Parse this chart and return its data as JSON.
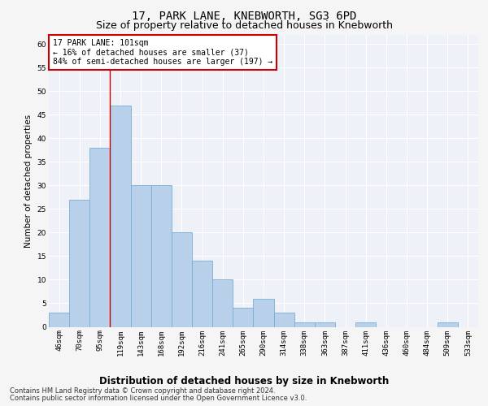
{
  "title": "17, PARK LANE, KNEBWORTH, SG3 6PD",
  "subtitle": "Size of property relative to detached houses in Knebworth",
  "xlabel": "Distribution of detached houses by size in Knebworth",
  "ylabel": "Number of detached properties",
  "bar_labels": [
    "46sqm",
    "70sqm",
    "95sqm",
    "119sqm",
    "143sqm",
    "168sqm",
    "192sqm",
    "216sqm",
    "241sqm",
    "265sqm",
    "290sqm",
    "314sqm",
    "338sqm",
    "363sqm",
    "387sqm",
    "411sqm",
    "436sqm",
    "460sqm",
    "484sqm",
    "509sqm",
    "533sqm"
  ],
  "bar_values": [
    3,
    27,
    38,
    47,
    30,
    30,
    20,
    14,
    10,
    4,
    6,
    3,
    1,
    1,
    0,
    1,
    0,
    0,
    0,
    1,
    0
  ],
  "bar_color": "#b8d0ea",
  "bar_edgecolor": "#7aaed0",
  "ylim": [
    0,
    62
  ],
  "yticks": [
    0,
    5,
    10,
    15,
    20,
    25,
    30,
    35,
    40,
    45,
    50,
    55,
    60
  ],
  "vline_x": 2.5,
  "vline_color": "#cc0000",
  "annotation_line1": "17 PARK LANE: 101sqm",
  "annotation_line2": "← 16% of detached houses are smaller (37)",
  "annotation_line3": "84% of semi-detached houses are larger (197) →",
  "annotation_box_color": "#cc0000",
  "footer_line1": "Contains HM Land Registry data © Crown copyright and database right 2024.",
  "footer_line2": "Contains public sector information licensed under the Open Government Licence v3.0.",
  "bg_color": "#eef2f8",
  "grid_color": "#ffffff",
  "fig_bg_color": "#f5f5f5",
  "title_fontsize": 10,
  "subtitle_fontsize": 9,
  "xlabel_fontsize": 8.5,
  "ylabel_fontsize": 7.5,
  "tick_fontsize": 6.5,
  "annot_fontsize": 7,
  "footer_fontsize": 6
}
